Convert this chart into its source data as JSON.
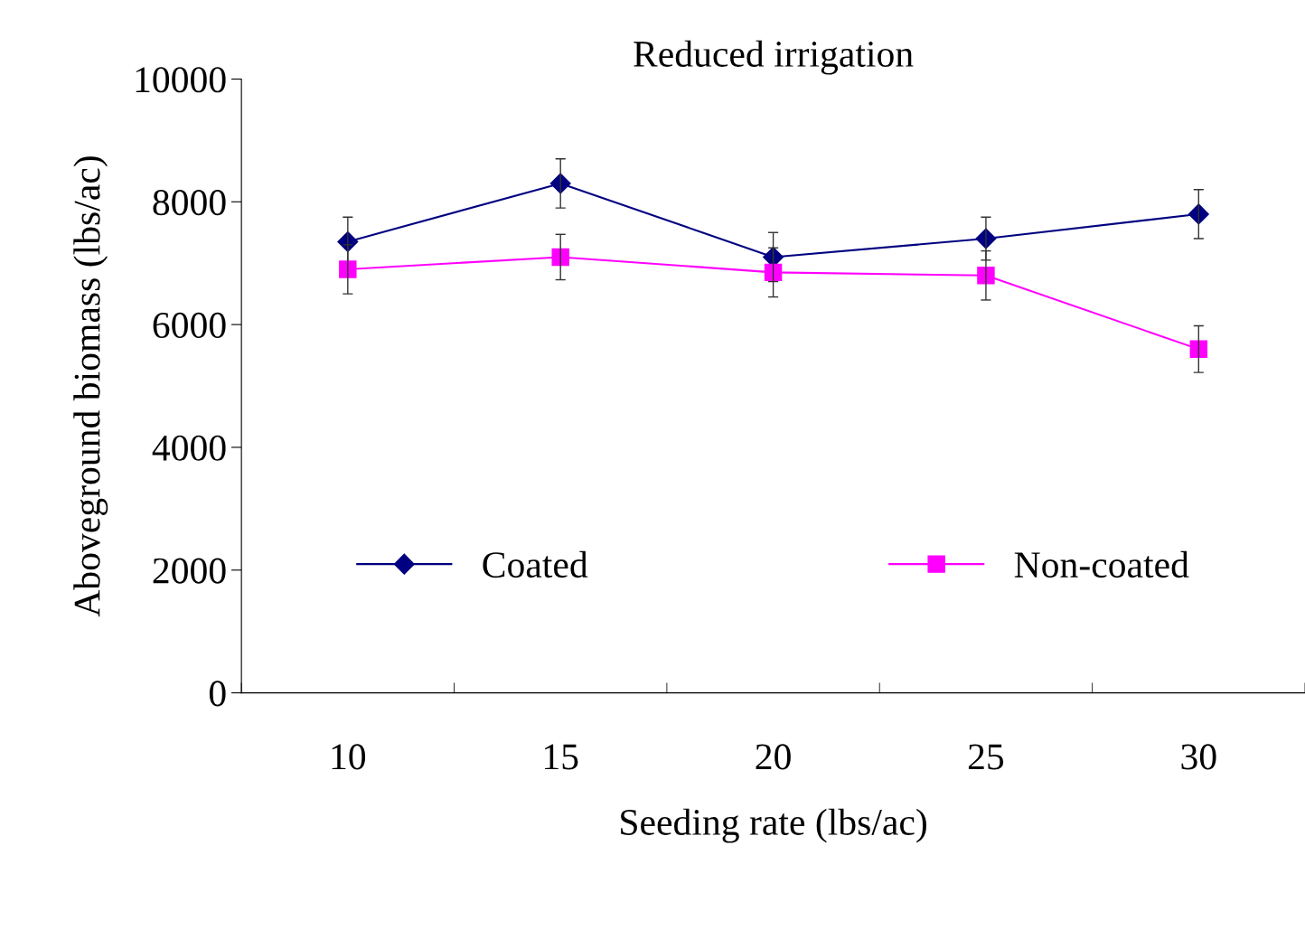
{
  "chart_data": {
    "type": "line",
    "title": "Reduced irrigation",
    "xlabel": "Seeding rate (lbs/ac)",
    "ylabel": "Aboveground biomass (lbs/ac)",
    "categories": [
      "10",
      "15",
      "20",
      "25",
      "30"
    ],
    "series": [
      {
        "name": "Coated",
        "color": "#000080",
        "marker": "diamond",
        "values": [
          7350,
          8300,
          7100,
          7400,
          7800
        ],
        "errors": [
          400,
          400,
          400,
          350,
          400
        ]
      },
      {
        "name": "Non-coated",
        "color": "#ff00ff",
        "marker": "square",
        "values": [
          6900,
          7100,
          6850,
          6800,
          5600
        ],
        "errors": [
          400,
          370,
          400,
          400,
          380
        ]
      }
    ],
    "ylim": [
      0,
      10000
    ],
    "yticks": [
      0,
      2000,
      4000,
      6000,
      8000,
      10000
    ],
    "grid": false,
    "legend": "bottom",
    "line_style": "solid"
  }
}
